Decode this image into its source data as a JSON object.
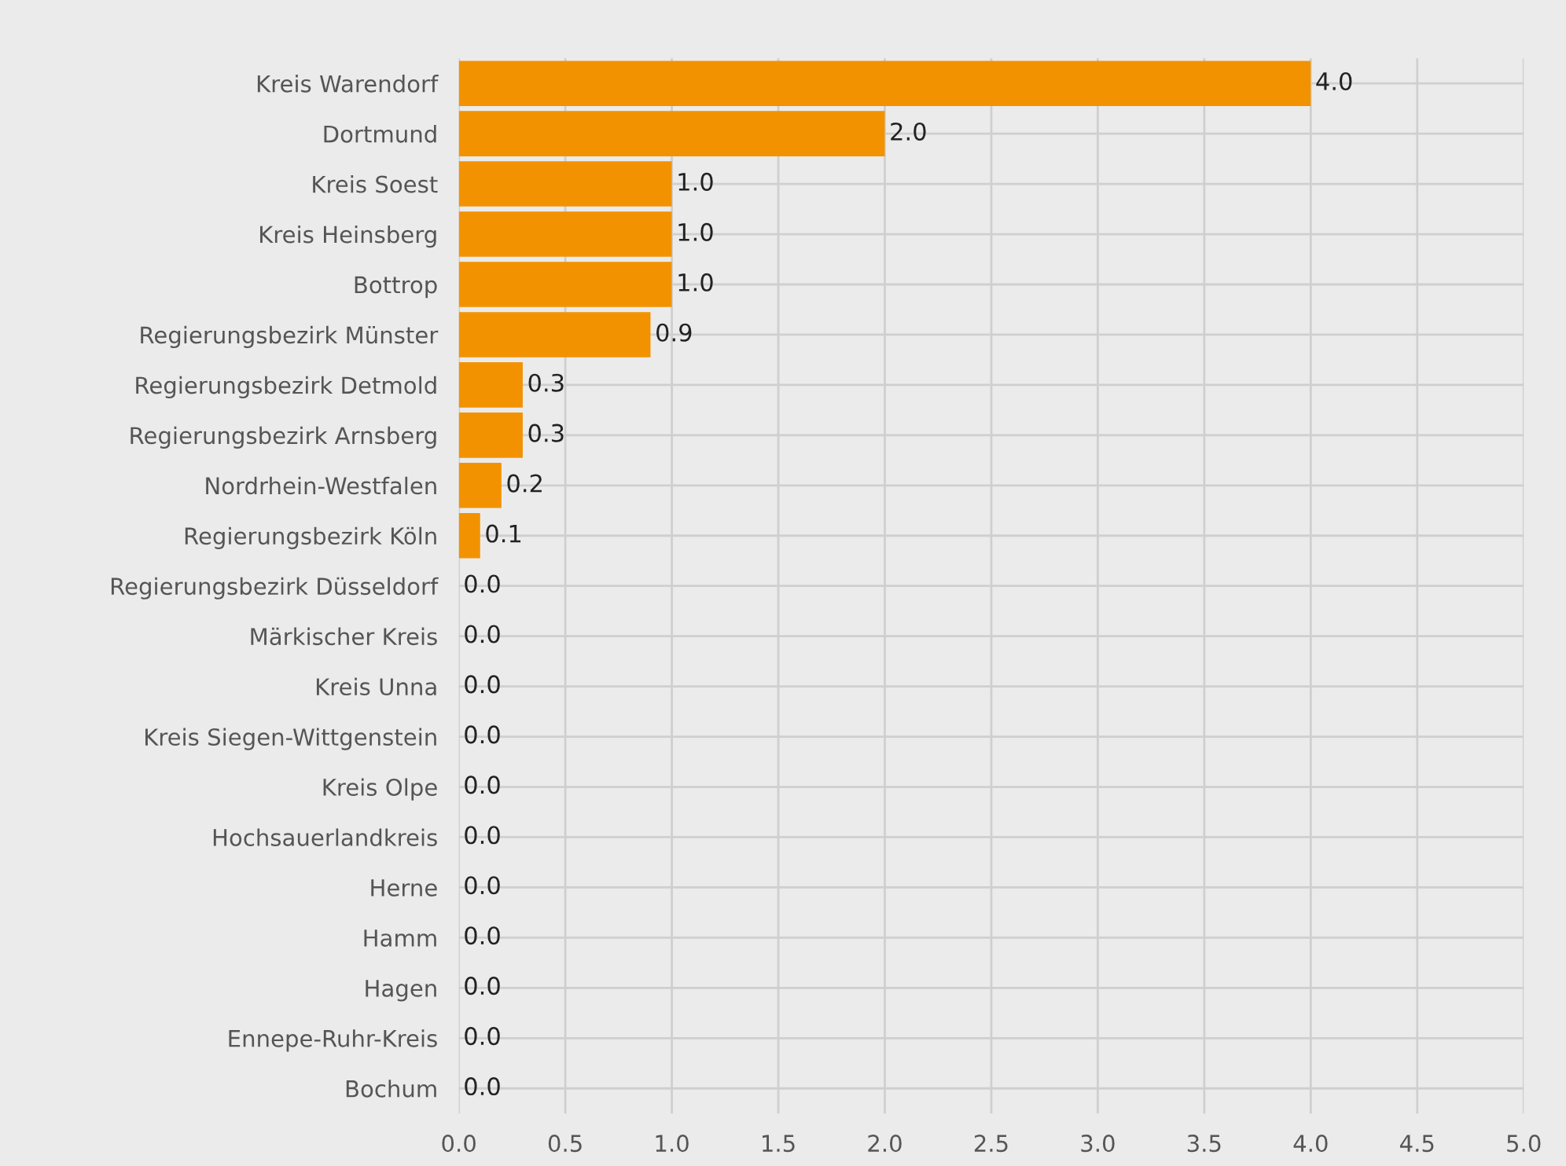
{
  "chart_data": {
    "type": "bar",
    "orientation": "horizontal",
    "categories": [
      "Kreis Warendorf",
      "Dortmund",
      "Kreis Soest",
      "Kreis Heinsberg",
      "Bottrop",
      "Regierungsbezirk Münster",
      "Regierungsbezirk Detmold",
      "Regierungsbezirk Arnsberg",
      "Nordrhein-Westfalen",
      "Regierungsbezirk Köln",
      "Regierungsbezirk Düsseldorf",
      "Märkischer Kreis",
      "Kreis Unna",
      "Kreis Siegen-Wittgenstein",
      "Kreis Olpe",
      "Hochsauerlandkreis",
      "Herne",
      "Hamm",
      "Hagen",
      "Ennepe-Ruhr-Kreis",
      "Bochum"
    ],
    "values": [
      4.0,
      2.0,
      1.0,
      1.0,
      1.0,
      0.9,
      0.3,
      0.3,
      0.2,
      0.1,
      0,
      0,
      0,
      0,
      0,
      0,
      0,
      0,
      0,
      0,
      0
    ],
    "value_labels": [
      "4.0",
      "2.0",
      "1.0",
      "1.0",
      "1.0",
      "0.9",
      "0.3",
      "0.3",
      "0.2",
      "0.1",
      "0.0",
      "0.0",
      "0.0",
      "0.0",
      "0.0",
      "0.0",
      "0.0",
      "0.0",
      "0.0",
      "0.0",
      "0.0"
    ],
    "color": "#f39200",
    "xlim": [
      0,
      5
    ],
    "xticks": [
      {
        "value": 0,
        "label": "0.0"
      },
      {
        "value": 0.5,
        "label": "0.5"
      },
      {
        "value": 1,
        "label": "1.0"
      },
      {
        "value": 1.5,
        "label": "1.5"
      },
      {
        "value": 2,
        "label": "2.0"
      },
      {
        "value": 2.5,
        "label": "2.5"
      },
      {
        "value": 3,
        "label": "3.0"
      },
      {
        "value": 3.5,
        "label": "3.5"
      },
      {
        "value": 4,
        "label": "4.0"
      },
      {
        "value": 4.5,
        "label": "4.5"
      },
      {
        "value": 5,
        "label": "5.0"
      }
    ],
    "grid": true
  }
}
